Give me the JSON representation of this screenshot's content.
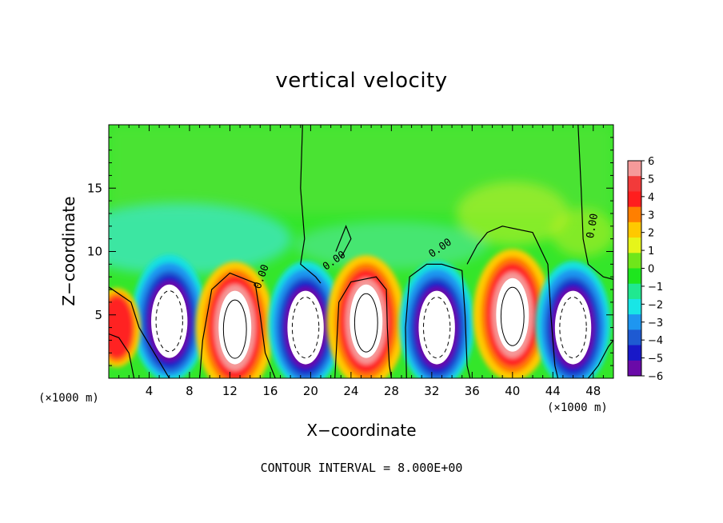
{
  "chart_data": {
    "type": "heatmap",
    "title": "vertical velocity",
    "xlabel": "X−coordinate",
    "ylabel": "Z−coordinate",
    "x_unit": "(×1000 m)",
    "xlim": [
      0,
      50
    ],
    "ylim": [
      0,
      20
    ],
    "x_ticks": [
      4,
      8,
      12,
      16,
      20,
      24,
      28,
      32,
      36,
      40,
      44,
      48
    ],
    "y_ticks": [
      5,
      10,
      15
    ],
    "colorbar": {
      "ticks": [
        6,
        5,
        4,
        3,
        2,
        1,
        0,
        -1,
        -2,
        -3,
        -4,
        -5,
        -6
      ],
      "tick_labels": [
        "6",
        "5",
        "4",
        "3",
        "2",
        "1",
        "0",
        "−1",
        "−2",
        "−3",
        "−4",
        "−5",
        "−6"
      ],
      "colors": [
        "#f59a9a",
        "#f23a3a",
        "#ff1e1e",
        "#ff7f00",
        "#ffc800",
        "#e6f51a",
        "#6fe61a",
        "#1ee61e",
        "#20e890",
        "#18e6e6",
        "#1e96f0",
        "#1e5ad2",
        "#1818c8",
        "#6a0aa8"
      ]
    },
    "contour_interval_text": "CONTOUR INTERVAL = 8.000E+00",
    "contour_labels": [
      "0.00",
      "0.00",
      "0.00",
      "0.00"
    ],
    "cells": [
      {
        "x": 6,
        "z": 4.5,
        "w": 1,
        "kind": "down"
      },
      {
        "x": 12.5,
        "z": 4.0,
        "w": 1,
        "kind": "up"
      },
      {
        "x": 19.5,
        "z": 4.0,
        "w": 1,
        "kind": "down"
      },
      {
        "x": 25.5,
        "z": 4.5,
        "w": 1,
        "kind": "up"
      },
      {
        "x": 32.5,
        "z": 4.0,
        "w": 1,
        "kind": "down"
      },
      {
        "x": 40,
        "z": 5.0,
        "w": 1,
        "kind": "up"
      },
      {
        "x": 46,
        "z": 4.0,
        "w": 1,
        "kind": "down"
      },
      {
        "x": 0.8,
        "z": 4.0,
        "w": 0.6,
        "kind": "up_weak"
      }
    ]
  }
}
